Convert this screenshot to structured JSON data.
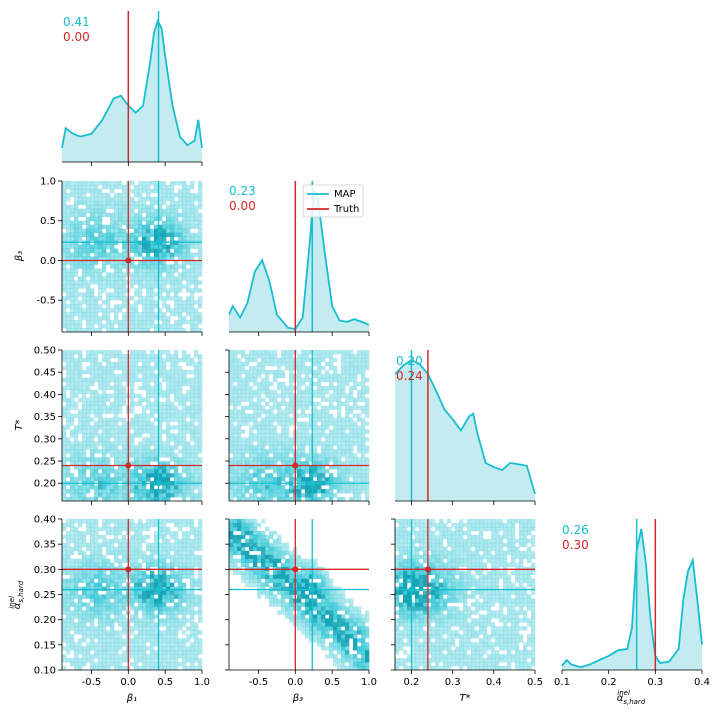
{
  "colors": {
    "map": "#17becf",
    "truth": "#d62728",
    "fill": "#c4ecf0",
    "hist_light": "#dff4f7",
    "hist_dark": "#16a5b6"
  },
  "params": [
    {
      "key": "beta1",
      "label": "β₁"
    },
    {
      "key": "beta3",
      "label": "β₃"
    },
    {
      "key": "Tstar",
      "label": "T*"
    },
    {
      "key": "alpha",
      "label": "α_{s,hard}^{inel}"
    }
  ],
  "axis_labels": {
    "beta1": "β₁",
    "beta3": "β₃",
    "Tstar": "T*",
    "alpha": "α",
    "alpha_sup": "inel",
    "alpha_sub": "s,hard"
  },
  "ranges": {
    "beta1": [
      -0.9,
      1.0
    ],
    "beta3": [
      -0.9,
      1.0
    ],
    "Tstar": [
      0.16,
      0.5
    ],
    "alpha": [
      0.1,
      0.4
    ]
  },
  "ticks": {
    "beta1": [
      "-0.5",
      "0.0",
      "0.5",
      "1.0"
    ],
    "beta3": [
      "-0.5",
      "0.0",
      "0.5",
      "1.0"
    ],
    "Tstar": [
      "0.2",
      "0.3",
      "0.4",
      "0.5"
    ],
    "Tstar_y": [
      "0.20",
      "0.25",
      "0.30",
      "0.35",
      "0.40",
      "0.45",
      "0.50"
    ],
    "alpha_x": [
      "0.1",
      "0.2",
      "0.3",
      "0.4"
    ],
    "alpha_y": [
      "0.10",
      "0.15",
      "0.20",
      "0.25",
      "0.30",
      "0.35",
      "0.40"
    ],
    "beta3_y": [
      "-0.5",
      "0.0",
      "0.5",
      "1.0"
    ]
  },
  "diag_labels": [
    {
      "map": "0.41",
      "truth": "0.00"
    },
    {
      "map": "0.23",
      "truth": "0.00"
    },
    {
      "map": "0.20",
      "truth": "0.24"
    },
    {
      "map": "0.26",
      "truth": "0.30"
    }
  ],
  "legend": {
    "map": "MAP",
    "truth": "Truth"
  },
  "chart_data": {
    "type": "corner",
    "map_values": {
      "beta1": 0.41,
      "beta3": 0.23,
      "Tstar": 0.2,
      "alpha": 0.26
    },
    "truth_values": {
      "beta1": 0.0,
      "beta3": 0.0,
      "Tstar": 0.24,
      "alpha": 0.3
    },
    "marginals": {
      "beta1": {
        "x": [
          -0.9,
          -0.85,
          -0.75,
          -0.65,
          -0.5,
          -0.35,
          -0.2,
          -0.1,
          0.0,
          0.1,
          0.2,
          0.3,
          0.35,
          0.4,
          0.45,
          0.5,
          0.6,
          0.7,
          0.8,
          0.9,
          0.95,
          1.0
        ],
        "y": [
          0.1,
          0.24,
          0.2,
          0.18,
          0.2,
          0.3,
          0.45,
          0.47,
          0.4,
          0.35,
          0.4,
          0.72,
          0.92,
          1.0,
          0.95,
          0.75,
          0.4,
          0.18,
          0.12,
          0.15,
          0.3,
          0.1
        ]
      },
      "beta3": {
        "x": [
          -0.9,
          -0.85,
          -0.75,
          -0.65,
          -0.55,
          -0.45,
          -0.35,
          -0.25,
          -0.1,
          0.0,
          0.1,
          0.2,
          0.25,
          0.3,
          0.4,
          0.5,
          0.6,
          0.7,
          0.8,
          0.9,
          1.0
        ],
        "y": [
          0.12,
          0.18,
          0.1,
          0.2,
          0.42,
          0.5,
          0.35,
          0.12,
          0.03,
          0.02,
          0.1,
          0.65,
          0.98,
          0.95,
          0.55,
          0.18,
          0.08,
          0.07,
          0.09,
          0.07,
          0.05
        ]
      },
      "Tstar": {
        "x": [
          0.16,
          0.18,
          0.2,
          0.22,
          0.24,
          0.26,
          0.28,
          0.3,
          0.32,
          0.34,
          0.35,
          0.36,
          0.38,
          0.4,
          0.42,
          0.44,
          0.46,
          0.48,
          0.5
        ],
        "y": [
          0.9,
          0.96,
          1.0,
          0.97,
          0.9,
          0.78,
          0.65,
          0.58,
          0.5,
          0.6,
          0.62,
          0.48,
          0.27,
          0.24,
          0.22,
          0.27,
          0.26,
          0.25,
          0.05
        ]
      },
      "alpha": {
        "x": [
          0.1,
          0.11,
          0.12,
          0.14,
          0.16,
          0.18,
          0.2,
          0.22,
          0.24,
          0.25,
          0.26,
          0.27,
          0.28,
          0.29,
          0.3,
          0.31,
          0.33,
          0.35,
          0.36,
          0.37,
          0.38,
          0.39,
          0.4
        ],
        "y": [
          0.03,
          0.07,
          0.04,
          0.02,
          0.04,
          0.07,
          0.1,
          0.14,
          0.15,
          0.3,
          0.85,
          1.0,
          0.75,
          0.35,
          0.1,
          0.05,
          0.06,
          0.15,
          0.5,
          0.7,
          0.78,
          0.5,
          0.18
        ]
      }
    }
  }
}
